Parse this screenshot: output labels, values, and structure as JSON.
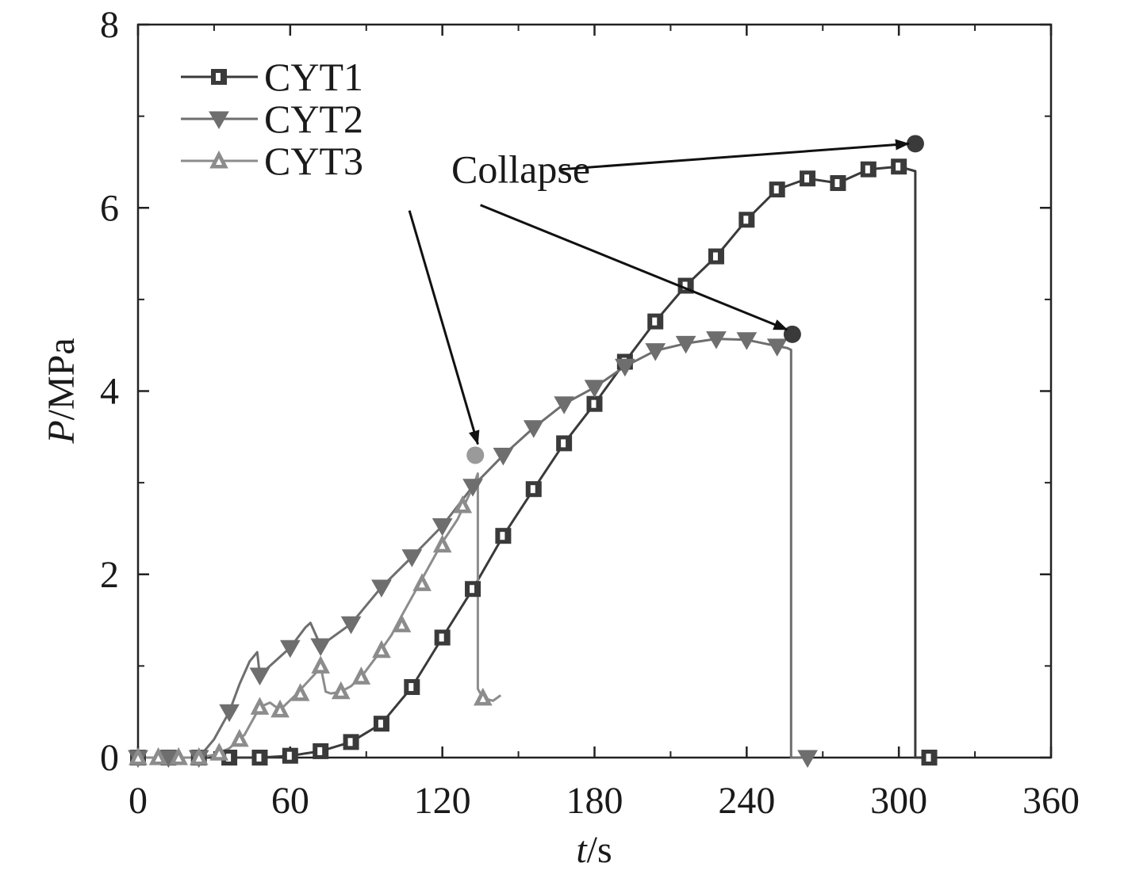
{
  "chart_data": {
    "type": "line",
    "xlabel": {
      "italic": "t",
      "rest": "/s"
    },
    "ylabel": {
      "italic": "P",
      "rest": "/MPa"
    },
    "xlim": [
      0,
      360
    ],
    "ylim": [
      0,
      8
    ],
    "x_ticks": [
      0,
      60,
      120,
      180,
      240,
      300,
      360
    ],
    "y_ticks": [
      0,
      2,
      4,
      6,
      8
    ],
    "grid": false,
    "legend_position": "top-left",
    "series": [
      {
        "name": "CYT1",
        "color": "#3a3a3a",
        "marker": "square",
        "x": [
          0,
          12,
          24,
          36,
          48,
          60,
          72,
          84,
          96,
          108,
          120,
          132,
          144,
          156,
          168,
          180,
          192,
          204,
          216,
          228,
          240,
          252,
          264,
          276,
          288,
          300,
          306.5,
          306.5,
          312
        ],
        "y": [
          0,
          0,
          0,
          0,
          0,
          0.02,
          0.07,
          0.17,
          0.37,
          0.77,
          1.31,
          1.84,
          2.42,
          2.93,
          3.43,
          3.86,
          4.32,
          4.76,
          5.15,
          5.47,
          5.87,
          6.2,
          6.32,
          6.27,
          6.42,
          6.45,
          6.4,
          0,
          0
        ],
        "markers_x": [
          0,
          12,
          24,
          36,
          48,
          60,
          72,
          84,
          96,
          108,
          120,
          132,
          144,
          156,
          168,
          180,
          192,
          204,
          216,
          228,
          240,
          252,
          264,
          276,
          288,
          300,
          312
        ],
        "markers_y": [
          0,
          0,
          0,
          0,
          0,
          0.02,
          0.07,
          0.17,
          0.37,
          0.77,
          1.31,
          1.84,
          2.42,
          2.93,
          3.43,
          3.86,
          4.32,
          4.76,
          5.15,
          5.47,
          5.87,
          6.2,
          6.32,
          6.27,
          6.42,
          6.45,
          0
        ]
      },
      {
        "name": "CYT2",
        "color": "#6e6e6e",
        "marker": "triangle-down",
        "x": [
          0,
          12,
          24,
          30,
          36,
          40,
          44,
          47,
          48,
          60,
          66,
          68,
          72,
          84,
          96,
          108,
          120,
          132,
          144,
          156,
          168,
          180,
          192,
          204,
          216,
          228,
          240,
          252,
          256,
          257.5,
          257.5,
          264
        ],
        "y": [
          0,
          0,
          0,
          0.2,
          0.5,
          0.8,
          1.05,
          1.15,
          0.9,
          1.2,
          1.42,
          1.47,
          1.22,
          1.46,
          1.86,
          2.19,
          2.53,
          2.96,
          3.3,
          3.6,
          3.86,
          4.04,
          4.27,
          4.44,
          4.52,
          4.57,
          4.56,
          4.49,
          4.47,
          4.45,
          0,
          0
        ],
        "markers_x": [
          0,
          12,
          24,
          36,
          48,
          60,
          72,
          84,
          96,
          108,
          120,
          132,
          144,
          156,
          168,
          180,
          192,
          204,
          216,
          228,
          240,
          252,
          264
        ],
        "markers_y": [
          0,
          0,
          0,
          0.5,
          0.9,
          1.2,
          1.22,
          1.46,
          1.86,
          2.19,
          2.53,
          2.96,
          3.3,
          3.6,
          3.86,
          4.04,
          4.27,
          4.44,
          4.52,
          4.57,
          4.56,
          4.49,
          0
        ]
      },
      {
        "name": "CYT3",
        "color": "#8c8c8c",
        "marker": "triangle-up",
        "x": [
          0,
          8,
          16,
          24,
          30,
          36,
          42,
          48,
          52,
          56,
          62,
          70,
          72,
          74,
          76,
          80,
          84,
          88,
          94,
          100,
          104,
          108,
          114,
          120,
          126,
          132,
          134,
          134,
          136,
          140,
          143
        ],
        "y": [
          0,
          0,
          0,
          0,
          0.03,
          0.1,
          0.25,
          0.55,
          0.6,
          0.52,
          0.68,
          0.92,
          1.0,
          0.72,
          0.7,
          0.72,
          0.78,
          0.88,
          1.1,
          1.34,
          1.55,
          1.75,
          2.05,
          2.35,
          2.6,
          2.95,
          3.1,
          0.75,
          0.65,
          0.62,
          0.68
        ],
        "markers_x": [
          0,
          8,
          16,
          24,
          32,
          40,
          48,
          56,
          64,
          72,
          80,
          88,
          96,
          104,
          112,
          120,
          128,
          136
        ],
        "markers_y": [
          0,
          0,
          0,
          0,
          0.05,
          0.2,
          0.55,
          0.52,
          0.7,
          1.0,
          0.72,
          0.88,
          1.17,
          1.45,
          1.9,
          2.32,
          2.75,
          0.65
        ]
      }
    ],
    "collapse_points": [
      {
        "x": 133,
        "y": 3.3,
        "color": "#9a9a9a"
      },
      {
        "x": 258,
        "y": 4.62,
        "color": "#3a3a3a"
      },
      {
        "x": 306.5,
        "y": 6.7,
        "color": "#3a3a3a"
      }
    ],
    "annotation": {
      "text": "Collapse",
      "anchor_x": 122,
      "anchor_y": 6.42,
      "arrow_targets": [
        {
          "from_x": 107,
          "from_y": 5.97,
          "to_x": 134,
          "to_y": 3.42
        },
        {
          "from_x": 135,
          "from_y": 6.03,
          "to_x": 256,
          "to_y": 4.67
        },
        {
          "from_x": 167,
          "from_y": 6.42,
          "to_x": 304,
          "to_y": 6.7
        }
      ]
    }
  }
}
